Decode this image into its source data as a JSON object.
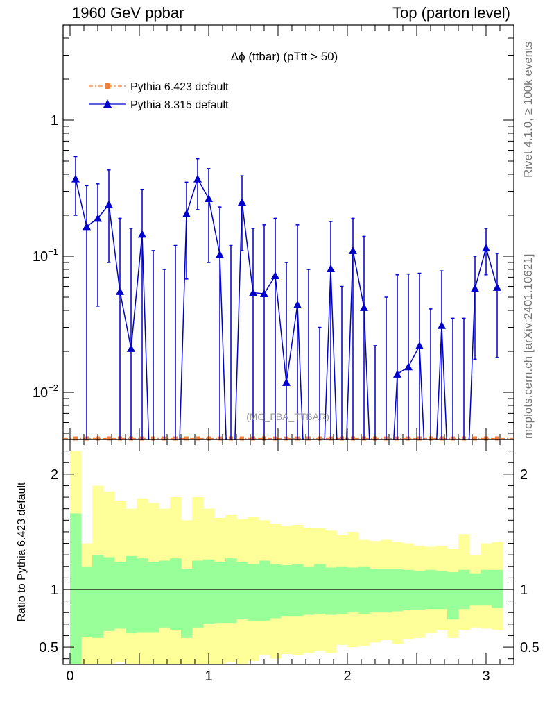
{
  "header": {
    "left": "1960 GeV ppbar",
    "right": "Top (parton level)"
  },
  "side_labels": {
    "rivet": "Rivet 4.1.0, ≥ 100k events",
    "mcplots": "mcplots.cern.ch [arXiv:2401.10621]"
  },
  "colors": {
    "pythia6": "#f47f3a",
    "pythia8": "#0000cc",
    "band_inner": "#99ff99",
    "band_outer": "#ffff99"
  },
  "chart_data": [
    {
      "type": "line",
      "title": "Δϕ (ttbar) (pTtt > 50)",
      "watermark": "(MC_FBA_TTBAR)",
      "yscale": "log",
      "xlim": [
        -0.05,
        3.2
      ],
      "ylim": [
        0.0045,
        5.0
      ],
      "ytick_labels": [
        {
          "value": 1.0,
          "base": "1",
          "exp": ""
        },
        {
          "value": 0.1,
          "base": "10",
          "exp": "−1"
        },
        {
          "value": 0.01,
          "base": "10",
          "exp": "−2"
        }
      ],
      "legend": [
        {
          "name": "Pythia 6.423 default",
          "style": "dash-dot-square"
        },
        {
          "name": "Pythia 8.315 default",
          "style": "line-triangle"
        }
      ],
      "series_p8": {
        "name": "Pythia 8.315 default",
        "x": [
          0.04,
          0.12,
          0.2,
          0.28,
          0.36,
          0.44,
          0.52,
          0.6,
          0.68,
          0.76,
          0.84,
          0.92,
          1.0,
          1.08,
          1.16,
          1.24,
          1.32,
          1.4,
          1.48,
          1.56,
          1.64,
          1.72,
          1.8,
          1.88,
          1.96,
          2.04,
          2.12,
          2.2,
          2.28,
          2.36,
          2.44,
          2.52,
          2.6,
          2.68,
          2.76,
          2.84,
          2.92,
          3.0,
          3.08
        ],
        "y": [
          0.37,
          0.165,
          0.19,
          0.24,
          0.055,
          0.021,
          0.145,
          0.0,
          0.0,
          0.0,
          0.205,
          0.37,
          0.265,
          0.103,
          0.0,
          0.25,
          0.054,
          0.053,
          0.072,
          0.0118,
          0.044,
          0.0,
          0.0,
          0.081,
          0.0,
          0.11,
          0.042,
          0.0,
          0.0,
          0.0136,
          0.0154,
          0.022,
          0.0,
          0.031,
          0.0,
          0.0,
          0.058,
          0.115,
          0.059
        ],
        "yerr_up": [
          0.54,
          0.33,
          0.34,
          0.43,
          0.19,
          0.16,
          0.31,
          0.11,
          0.08,
          0.12,
          0.35,
          0.52,
          0.44,
          0.23,
          0.12,
          0.39,
          0.16,
          0.17,
          0.19,
          0.09,
          0.17,
          0.08,
          0.03,
          0.18,
          0.06,
          0.19,
          0.14,
          0.022,
          0.05,
          0.073,
          0.074,
          0.075,
          0.041,
          0.078,
          0.035,
          0.035,
          0.1,
          0.16,
          0.105
        ],
        "yerr_down": [
          0.2,
          0.0,
          0.043,
          0.09,
          0.0,
          0.0,
          0.0,
          0.0,
          0.0,
          0.0,
          0.068,
          0.22,
          0.09,
          0.0,
          0.0,
          0.11,
          0.0,
          0.0,
          0.0,
          0.0,
          0.0,
          0.0,
          0.0,
          0.0,
          0.0,
          0.0,
          0.0,
          0.0,
          0.0,
          0.0,
          0.0,
          0.0,
          0.0,
          0.0,
          0.0,
          0.0,
          0.0175,
          0.073,
          0.018
        ]
      },
      "series_p6": {
        "name": "Pythia 6.423 default",
        "y_level": "below axis minimum"
      }
    },
    {
      "type": "area",
      "ylabel": "Ratio to Pythia 6.423 default",
      "xlim": [
        -0.05,
        3.2
      ],
      "ylim": [
        0.35,
        2.3
      ],
      "reference_line": 1.0,
      "xticks": [
        0,
        1,
        2,
        3
      ],
      "yticks": [
        0.5,
        1,
        2
      ],
      "ytick_labels": [
        "0.5",
        "1",
        "2"
      ],
      "xtick_labels": [
        "0",
        "1",
        "2",
        "3"
      ],
      "bin_edges": [
        0.0,
        0.08,
        0.16,
        0.24,
        0.32,
        0.4,
        0.48,
        0.56,
        0.64,
        0.72,
        0.8,
        0.88,
        0.96,
        1.04,
        1.12,
        1.2,
        1.28,
        1.36,
        1.44,
        1.52,
        1.6,
        1.68,
        1.76,
        1.84,
        1.92,
        2.0,
        2.08,
        2.16,
        2.24,
        2.32,
        2.4,
        2.48,
        2.56,
        2.64,
        2.72,
        2.8,
        2.88,
        2.96,
        3.04,
        3.12
      ],
      "inner_band_upper": [
        1.66,
        1.2,
        1.3,
        1.28,
        1.24,
        1.29,
        1.27,
        1.24,
        1.25,
        1.27,
        1.18,
        1.25,
        1.26,
        1.24,
        1.27,
        1.24,
        1.22,
        1.25,
        1.22,
        1.21,
        1.22,
        1.2,
        1.22,
        1.19,
        1.2,
        1.19,
        1.2,
        1.18,
        1.18,
        1.18,
        1.17,
        1.16,
        1.17,
        1.16,
        1.15,
        1.17,
        1.14,
        1.17,
        1.17
      ],
      "inner_band_lower": [
        0.32,
        0.59,
        0.58,
        0.64,
        0.66,
        0.62,
        0.63,
        0.63,
        0.67,
        0.65,
        0.58,
        0.67,
        0.7,
        0.71,
        0.71,
        0.74,
        0.73,
        0.73,
        0.75,
        0.77,
        0.77,
        0.78,
        0.79,
        0.78,
        0.79,
        0.8,
        0.79,
        0.8,
        0.8,
        0.81,
        0.82,
        0.82,
        0.83,
        0.83,
        0.74,
        0.83,
        0.86,
        0.86,
        0.84
      ],
      "outer_band_upper": [
        2.2,
        1.4,
        1.9,
        1.85,
        1.77,
        1.7,
        1.79,
        1.75,
        1.7,
        1.8,
        1.6,
        1.8,
        1.7,
        1.62,
        1.65,
        1.61,
        1.63,
        1.6,
        1.57,
        1.55,
        1.56,
        1.53,
        1.53,
        1.51,
        1.47,
        1.5,
        1.43,
        1.42,
        1.43,
        1.41,
        1.4,
        1.38,
        1.37,
        1.38,
        1.35,
        1.48,
        1.3,
        1.4,
        1.41
      ],
      "outer_band_lower": [
        0.3,
        0.3,
        0.3,
        0.35,
        0.37,
        0.35,
        0.3,
        0.3,
        0.3,
        0.34,
        0.3,
        0.33,
        0.33,
        0.35,
        0.37,
        0.33,
        0.38,
        0.43,
        0.4,
        0.44,
        0.43,
        0.45,
        0.47,
        0.45,
        0.52,
        0.5,
        0.51,
        0.54,
        0.56,
        0.53,
        0.57,
        0.58,
        0.62,
        0.65,
        0.58,
        0.65,
        0.67,
        0.66,
        0.65
      ]
    }
  ]
}
